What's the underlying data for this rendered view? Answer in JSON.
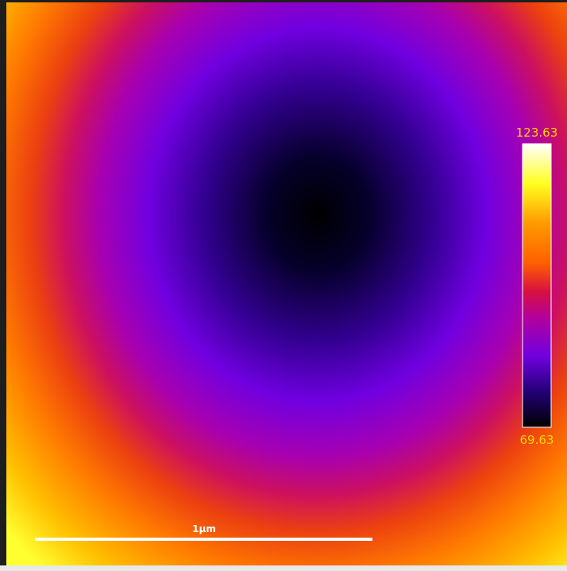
{
  "colorbar": {
    "max": "123.63",
    "min": "69.63"
  },
  "scale_bar": {
    "label": "1μm"
  }
}
